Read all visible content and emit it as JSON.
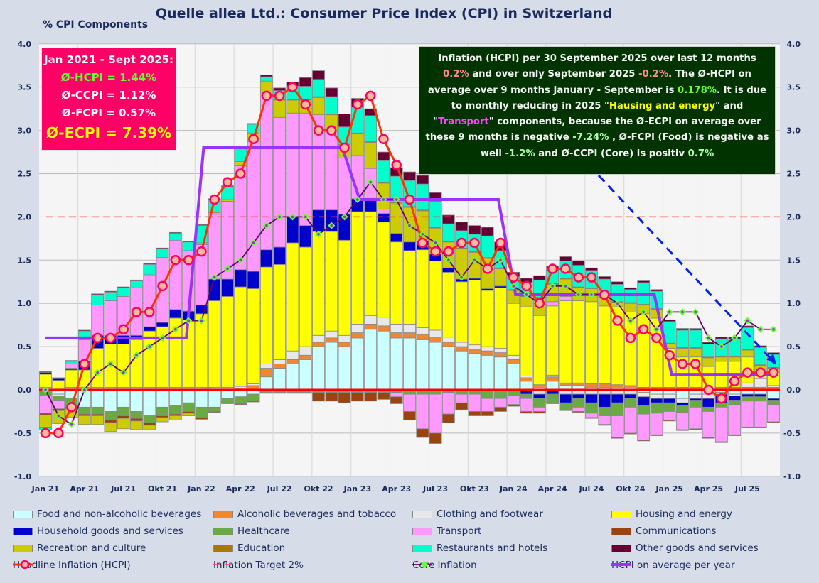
{
  "title": "Quelle allea Ltd.: Consumer Price Index (CPI) in Switzerland",
  "left_box": {
    "heading": "Jan 2021 - Sept 2025:",
    "lines": [
      {
        "text": "Ø-HCPI  = 1.44%",
        "color": "#66ff33"
      },
      {
        "text": "Ø-CCPI  = 1.12%",
        "color": "#ffffff"
      },
      {
        "text": "Ø-FCPI  = 0.57%",
        "color": "#ffffff"
      },
      {
        "text": "Ø-ECPI  = 7.39%",
        "color": "#ffff00"
      }
    ]
  },
  "right_box": {
    "segments": [
      {
        "text": "Inflation (HCPI) per 30 September 2025 over last 12 months ",
        "color": "#f2f2f2"
      },
      {
        "text": "0.2%",
        "color": "#ff8899"
      },
      {
        "text": " and over only September 2025 ",
        "color": "#f2f2f2"
      },
      {
        "text": "-0.2%",
        "color": "#ff8899"
      },
      {
        "text": ".   The Ø-HCPI on average over 9 months January - September  is ",
        "color": "#f2f2f2"
      },
      {
        "text": "0.178%",
        "color": "#66ff33"
      },
      {
        "text": ".  It is due to monthly reducing in 2025  \"",
        "color": "#f2f2f2"
      },
      {
        "text": "Hausing and energy",
        "color": "#ffff00"
      },
      {
        "text": "\" and \"",
        "color": "#f2f2f2"
      },
      {
        "text": "Transport",
        "color": "#ff44ff"
      },
      {
        "text": "\" components, because the Ø-ECPI on average over these 9 months is negative  ",
        "color": "#f2f2f2"
      },
      {
        "text": "-7.24%",
        "color": "#aaffaa"
      },
      {
        "text": " , Ø-FCPI (Food) is negative as well ",
        "color": "#f2f2f2"
      },
      {
        "text": "-1.2%",
        "color": "#aaffaa"
      },
      {
        "text": " and Ø-CCPI  (Core) is positiv ",
        "color": "#f2f2f2"
      },
      {
        "text": "0.7%",
        "color": "#aaffaa"
      }
    ]
  },
  "chart_data": {
    "type": "bar",
    "stacked": true,
    "ylabel": "% CPI Components",
    "ylim": [
      -1.0,
      4.0
    ],
    "yticks": [
      "-1.0",
      "-0.5",
      "0.0",
      "0.5",
      "1.0",
      "1.5",
      "2.0",
      "2.5",
      "3.0",
      "3.5",
      "4.0"
    ],
    "xticks": [
      "Jan 21",
      "Apr 21",
      "Jul 21",
      "Okt 21",
      "Jan 22",
      "Apr 22",
      "Jul 22",
      "Okt 22",
      "Jan 23",
      "Apr 23",
      "Jul 23",
      "Okt 23",
      "Jan 24",
      "Apr 24",
      "Jul 24",
      "Okt 24",
      "Jan 25",
      "Apr 25",
      "Jul 25"
    ],
    "x_start": "2021-01",
    "x_end": "2025-09",
    "grid": true,
    "legend_placement": "bottom",
    "series": [
      {
        "name": "Food and non-alcoholic beverages",
        "color": "#ccffff",
        "values": [
          -0.02,
          -0.05,
          -0.1,
          -0.2,
          -0.2,
          -0.25,
          -0.2,
          -0.25,
          -0.3,
          -0.2,
          -0.18,
          -0.15,
          -0.2,
          -0.2,
          -0.1,
          -0.08,
          -0.05,
          0.15,
          0.25,
          0.3,
          0.35,
          0.5,
          0.55,
          0.5,
          0.6,
          0.7,
          0.68,
          0.6,
          0.6,
          0.58,
          0.55,
          0.5,
          0.45,
          0.42,
          0.4,
          0.38,
          0.3,
          0.1,
          0.02,
          0.1,
          0.05,
          0.05,
          0.03,
          0.03,
          0.02,
          0.02,
          -0.03,
          -0.05,
          -0.05,
          -0.1,
          -0.05,
          -0.05,
          -0.03,
          -0.05,
          -0.05,
          -0.05,
          -0.1
        ]
      },
      {
        "name": "Alcoholic beverages and tobacco",
        "color": "#ee8833",
        "values": [
          0.01,
          0.01,
          0.01,
          0.01,
          0.01,
          0.01,
          0.01,
          0.01,
          0.01,
          0.01,
          0.01,
          0.01,
          0.01,
          0.01,
          0.01,
          0.02,
          0.05,
          0.1,
          0.05,
          0.05,
          0.05,
          0.05,
          0.05,
          0.05,
          0.06,
          0.06,
          0.06,
          0.06,
          0.06,
          0.06,
          0.06,
          0.05,
          0.05,
          0.05,
          0.05,
          0.05,
          0.05,
          0.04,
          0.04,
          0.05,
          0.03,
          0.03,
          0.04,
          0.04,
          0.04,
          0.03,
          0.03,
          0.03,
          0.03,
          0.03,
          0.03,
          0.02,
          0.03,
          0.03,
          0.03,
          0.03,
          0.03
        ]
      },
      {
        "name": "Clothing and footwear",
        "color": "#e8e8e8",
        "values": [
          0.02,
          -0.02,
          0.02,
          0.02,
          0.02,
          0.02,
          0.02,
          0.02,
          0.02,
          0.02,
          0.02,
          0.02,
          0.02,
          0.02,
          0.02,
          0.02,
          0.02,
          0.05,
          0.05,
          0.1,
          0.1,
          0.08,
          0.08,
          0.08,
          0.1,
          0.1,
          0.1,
          0.1,
          0.1,
          0.08,
          0.08,
          0.06,
          0.05,
          0.05,
          0.05,
          0.05,
          0.05,
          0.02,
          -0.05,
          0.02,
          -0.05,
          -0.05,
          -0.05,
          -0.05,
          -0.05,
          -0.05,
          -0.05,
          -0.05,
          -0.05,
          -0.05,
          -0.05,
          -0.05,
          -0.02,
          -0.02,
          0.05,
          0.1,
          0.02
        ]
      },
      {
        "name": "Housing and energy",
        "color": "#ffff00",
        "values": [
          0.15,
          0.1,
          0.2,
          0.2,
          0.45,
          0.5,
          0.5,
          0.55,
          0.65,
          0.7,
          0.8,
          0.78,
          0.85,
          1.0,
          1.05,
          1.15,
          1.1,
          1.12,
          1.1,
          1.25,
          1.15,
          1.2,
          1.15,
          1.1,
          1.3,
          1.2,
          1.1,
          0.95,
          0.85,
          0.9,
          0.8,
          0.75,
          0.7,
          0.75,
          0.65,
          0.7,
          0.6,
          0.8,
          0.8,
          0.8,
          0.95,
          0.95,
          0.95,
          0.9,
          0.9,
          0.85,
          0.85,
          0.8,
          0.45,
          0.35,
          0.35,
          0.25,
          0.3,
          0.3,
          0.3,
          0.1,
          0.15
        ]
      },
      {
        "name": "Household goods and services",
        "color": "#0000cc",
        "values": [
          0.02,
          0.02,
          0.02,
          0.1,
          0.15,
          0.1,
          0.1,
          0.05,
          0.05,
          0.05,
          0.1,
          0.1,
          0.1,
          0.25,
          0.2,
          0.2,
          0.2,
          0.2,
          0.2,
          0.3,
          0.25,
          0.25,
          0.25,
          0.3,
          0.15,
          0.15,
          0.1,
          0.1,
          0.1,
          0.1,
          0.08,
          0.05,
          0.03,
          0.02,
          0.02,
          0.02,
          -0.02,
          -0.05,
          -0.05,
          -0.05,
          -0.1,
          -0.05,
          -0.1,
          -0.15,
          -0.1,
          -0.05,
          -0.1,
          -0.05,
          -0.05,
          -0.03,
          -0.02,
          -0.1,
          -0.1,
          -0.05,
          -0.03,
          -0.03,
          -0.02
        ]
      },
      {
        "name": "Healthcare",
        "color": "#6aaa44",
        "values": [
          -0.05,
          -0.05,
          -0.1,
          -0.08,
          -0.08,
          -0.1,
          -0.1,
          -0.08,
          -0.08,
          -0.1,
          -0.1,
          -0.1,
          -0.12,
          -0.05,
          -0.05,
          -0.08,
          -0.08,
          -0.03,
          -0.03,
          -0.03,
          -0.03,
          -0.03,
          -0.03,
          -0.03,
          -0.03,
          -0.03,
          -0.03,
          -0.03,
          -0.05,
          -0.05,
          -0.05,
          -0.03,
          -0.05,
          -0.05,
          -0.1,
          -0.1,
          -0.05,
          -0.05,
          -0.1,
          -0.1,
          -0.08,
          -0.1,
          -0.12,
          -0.1,
          -0.15,
          -0.1,
          -0.1,
          -0.12,
          -0.1,
          -0.08,
          -0.08,
          -0.05,
          -0.05,
          -0.05,
          -0.05,
          -0.05,
          -0.05
        ]
      },
      {
        "name": "Transport",
        "color": "#ff99ff",
        "values": [
          -0.2,
          -0.1,
          0.05,
          0.25,
          0.35,
          0.4,
          0.45,
          0.55,
          0.6,
          0.75,
          0.8,
          0.7,
          0.7,
          0.75,
          0.9,
          1.2,
          1.5,
          1.8,
          1.5,
          1.2,
          1.3,
          1.1,
          0.9,
          0.65,
          0.5,
          0.35,
          0.05,
          -0.05,
          -0.2,
          -0.4,
          -0.45,
          -0.25,
          -0.1,
          -0.2,
          -0.15,
          -0.1,
          -0.1,
          -0.15,
          -0.05,
          0.05,
          0.05,
          -0.05,
          -0.05,
          -0.1,
          -0.25,
          -0.3,
          -0.3,
          -0.25,
          -0.1,
          -0.2,
          -0.25,
          -0.3,
          -0.4,
          -0.35,
          -0.3,
          -0.3,
          -0.2
        ]
      },
      {
        "name": "Communications",
        "color": "#994411",
        "values": [
          -0.02,
          -0.02,
          -0.02,
          -0.02,
          -0.02,
          -0.03,
          -0.03,
          -0.03,
          -0.03,
          -0.02,
          -0.02,
          -0.02,
          -0.02,
          -0.01,
          -0.01,
          -0.01,
          -0.01,
          -0.01,
          -0.01,
          -0.01,
          -0.01,
          -0.1,
          -0.1,
          -0.12,
          -0.1,
          -0.1,
          -0.08,
          -0.08,
          -0.1,
          -0.1,
          -0.12,
          -0.1,
          -0.08,
          -0.05,
          -0.05,
          -0.05,
          -0.02,
          -0.02,
          -0.02,
          -0.01,
          -0.01,
          -0.01,
          -0.01,
          -0.01,
          -0.01,
          -0.01,
          -0.01,
          -0.01,
          -0.01,
          -0.01,
          -0.01,
          -0.01,
          -0.01,
          -0.01,
          -0.01,
          -0.01,
          -0.01
        ]
      },
      {
        "name": "Recreation and culture",
        "color": "#cccc00",
        "values": [
          -0.15,
          -0.15,
          -0.1,
          -0.1,
          -0.1,
          -0.1,
          -0.12,
          -0.1,
          -0.05,
          -0.05,
          -0.05,
          -0.03,
          0.02,
          0.02,
          0.02,
          0.05,
          0.1,
          0.15,
          0.2,
          0.15,
          0.15,
          0.2,
          0.2,
          0.15,
          0.25,
          0.3,
          0.3,
          0.35,
          0.4,
          0.35,
          0.3,
          0.3,
          0.35,
          0.3,
          0.35,
          0.2,
          0.15,
          0.12,
          0.2,
          0.2,
          0.2,
          0.15,
          0.15,
          0.1,
          0.05,
          0.1,
          0.1,
          0.1,
          0.05,
          0.1,
          0.1,
          0.1,
          0.05,
          0.05,
          0.08,
          0.05,
          0.05
        ]
      },
      {
        "name": "Education",
        "color": "#aa7700",
        "values": [
          0.0,
          0.0,
          0.0,
          0.0,
          0.0,
          0.0,
          0.0,
          0.0,
          0.0,
          0.0,
          0.0,
          0.0,
          0.0,
          0.0,
          0.0,
          0.0,
          0.0,
          0.0,
          0.01,
          0.01,
          0.01,
          0.01,
          0.01,
          0.01,
          0.01,
          0.01,
          0.01,
          0.01,
          0.01,
          0.01,
          0.01,
          0.01,
          0.01,
          0.01,
          0.01,
          0.01,
          0.01,
          0.01,
          0.01,
          0.01,
          0.01,
          0.01,
          0.01,
          0.01,
          0.01,
          0.01,
          0.01,
          0.01,
          0.01,
          0.01,
          0.01,
          0.01,
          0.01,
          0.01,
          0.01,
          0.01,
          0.01
        ]
      },
      {
        "name": "Restaurants and hotels",
        "color": "#00ffcc",
        "values": [
          -0.02,
          0.0,
          0.03,
          0.1,
          0.12,
          0.1,
          0.1,
          0.08,
          0.12,
          0.1,
          0.08,
          0.1,
          0.2,
          0.15,
          0.15,
          0.15,
          0.1,
          0.05,
          0.1,
          0.15,
          0.15,
          0.2,
          0.2,
          0.2,
          0.3,
          0.3,
          0.25,
          0.3,
          0.3,
          0.3,
          0.3,
          0.2,
          0.2,
          0.2,
          0.25,
          0.2,
          0.15,
          0.15,
          0.2,
          0.15,
          0.2,
          0.25,
          0.2,
          0.2,
          0.2,
          0.15,
          0.25,
          0.2,
          0.25,
          0.2,
          0.2,
          0.15,
          0.2,
          0.2,
          0.25,
          0.2,
          0.15
        ]
      },
      {
        "name": "Other goods and services",
        "color": "#660033",
        "values": [
          0.01,
          0.01,
          0.01,
          0.01,
          0.01,
          0.01,
          0.01,
          0.01,
          0.01,
          0.01,
          0.01,
          0.01,
          0.01,
          0.01,
          0.01,
          0.01,
          0.01,
          0.02,
          0.03,
          0.05,
          0.1,
          0.1,
          0.1,
          0.15,
          0.1,
          0.08,
          0.1,
          0.1,
          0.1,
          0.1,
          0.1,
          0.1,
          0.1,
          0.1,
          0.1,
          0.1,
          0.05,
          0.05,
          0.05,
          0.05,
          0.05,
          0.05,
          0.03,
          0.03,
          0.03,
          0.02,
          0.02,
          0.02,
          0.02,
          0.02,
          0.02,
          0.02,
          0.02,
          0.02,
          0.02,
          0.02,
          0.02
        ]
      }
    ],
    "lines": [
      {
        "name": "Headline Inflation (HCPI)",
        "color": "#ff3300",
        "values": [
          -0.5,
          -0.5,
          -0.2,
          0.3,
          0.6,
          0.6,
          0.7,
          0.9,
          0.9,
          1.2,
          1.5,
          1.5,
          1.6,
          2.2,
          2.4,
          2.5,
          2.9,
          3.4,
          3.4,
          3.5,
          3.3,
          3.0,
          3.0,
          2.8,
          3.3,
          3.4,
          2.9,
          2.6,
          2.2,
          1.7,
          1.6,
          1.6,
          1.7,
          1.7,
          1.4,
          1.7,
          1.3,
          1.2,
          1.0,
          1.4,
          1.4,
          1.3,
          1.3,
          1.1,
          0.8,
          0.6,
          0.7,
          0.6,
          0.4,
          0.3,
          0.3,
          0.0,
          -0.1,
          0.1,
          0.2,
          0.2,
          0.2
        ]
      },
      {
        "name": "Core Inflation",
        "color": "#660066",
        "values": [
          0.0,
          -0.3,
          -0.4,
          0.0,
          0.2,
          0.3,
          0.2,
          0.4,
          0.5,
          0.6,
          0.7,
          0.8,
          0.8,
          1.3,
          1.4,
          1.5,
          1.7,
          1.9,
          2.0,
          2.0,
          2.0,
          1.8,
          1.9,
          2.0,
          2.2,
          2.4,
          2.2,
          2.2,
          1.9,
          1.8,
          1.7,
          1.5,
          1.3,
          1.5,
          1.4,
          1.5,
          1.2,
          1.1,
          1.0,
          1.2,
          1.2,
          1.1,
          1.1,
          1.1,
          1.0,
          0.8,
          0.9,
          0.7,
          0.9,
          0.9,
          0.9,
          0.6,
          0.5,
          0.6,
          0.8,
          0.7,
          0.7
        ]
      },
      {
        "name": "Inflation Target 2%",
        "color": "#ff4444",
        "value": 2.0
      },
      {
        "name": "HCPI on average per year",
        "color": "#9933ff",
        "years": [
          "2021",
          "2022",
          "2023",
          "2024",
          "2025"
        ],
        "values": [
          0.6,
          2.8,
          2.2,
          1.1,
          0.18
        ]
      }
    ]
  }
}
